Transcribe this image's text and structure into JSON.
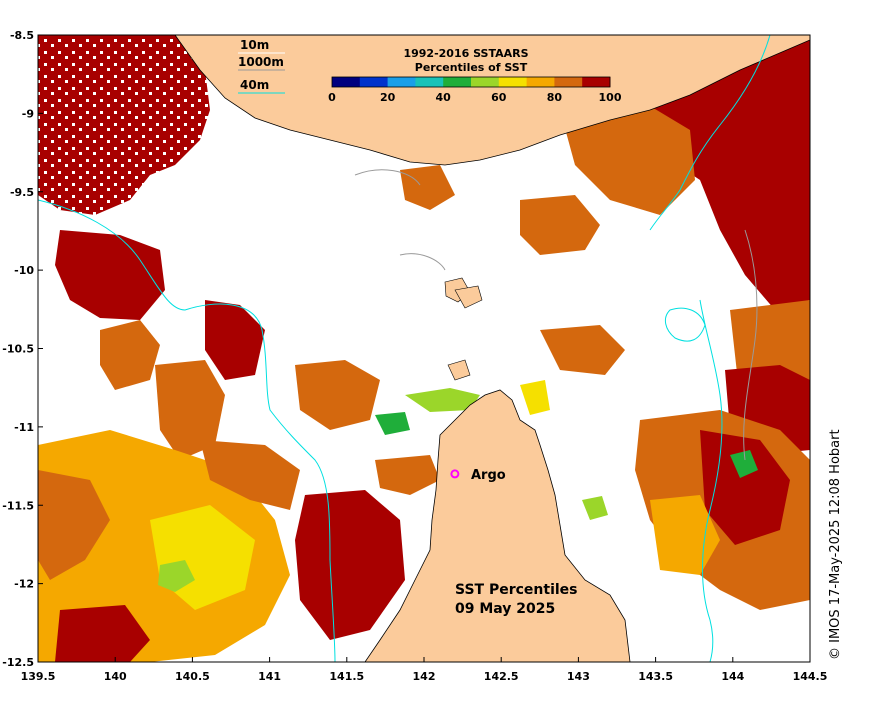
{
  "legend": {
    "title_line1": "1992-2016 SSTAARS",
    "title_line2": "Percentiles of SST",
    "ticks": [
      "0",
      "20",
      "40",
      "60",
      "80",
      "100"
    ],
    "bins": [
      {
        "from": 0,
        "to": 10,
        "color": "#00007f"
      },
      {
        "from": 10,
        "to": 20,
        "color": "#0033cc"
      },
      {
        "from": 20,
        "to": 30,
        "color": "#1a9fe8"
      },
      {
        "from": 30,
        "to": 40,
        "color": "#19c2b8"
      },
      {
        "from": 40,
        "to": 50,
        "color": "#1fae3a"
      },
      {
        "from": 50,
        "to": 60,
        "color": "#9bd62a"
      },
      {
        "from": 60,
        "to": 70,
        "color": "#f5e000"
      },
      {
        "from": 70,
        "to": 80,
        "color": "#f5a800"
      },
      {
        "from": 80,
        "to": 90,
        "color": "#d4680e"
      },
      {
        "from": 90,
        "to": 100,
        "color": "#a80000"
      }
    ]
  },
  "depth_legend": {
    "items": [
      {
        "label": "10m",
        "color": "#ffffff"
      },
      {
        "label": "1000m",
        "color": "#9a9a9a"
      },
      {
        "label": "40m",
        "color": "#00e0e0"
      }
    ]
  },
  "axes": {
    "x_ticks": [
      "139.5",
      "140",
      "140.5",
      "141",
      "141.5",
      "142",
      "142.5",
      "143",
      "143.5",
      "144",
      "144.5"
    ],
    "y_ticks": [
      "-8.5",
      "-9",
      "-9.5",
      "-10",
      "-10.5",
      "-11",
      "-11.5",
      "-12",
      "-12.5"
    ],
    "x_range": [
      139.5,
      144.5
    ],
    "y_range": [
      -12.5,
      -8.5
    ]
  },
  "argo": {
    "label": "Argo",
    "lon": 142.2,
    "lat": -11.3,
    "color": "#ff00ff"
  },
  "map_title": {
    "line1": "SST Percentiles",
    "line2": "09 May 2025"
  },
  "credit": "© IMOS 17-May-2025 12:08 Hobart",
  "colors": {
    "land": "#fbcb9b",
    "no_data": "#ffffff",
    "hot": "#a80000",
    "warm": "#d4680e",
    "orange": "#f5a800",
    "yellow": "#f5e000",
    "green": "#1fae3a",
    "contour_40m": "#00e0e0",
    "contour_1000m": "#9a9a9a"
  }
}
